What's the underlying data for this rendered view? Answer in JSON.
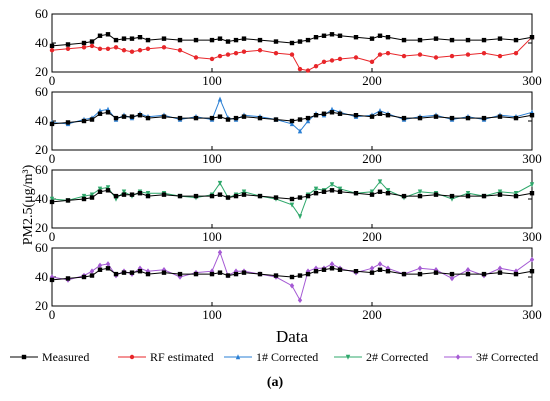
{
  "chart_data": {
    "type": "line",
    "caption": "(a)",
    "xlabel": "Data",
    "ylabel": "PM2.5(μg/m³)",
    "xlim": [
      0,
      300
    ],
    "ylim": [
      20,
      60
    ],
    "x_ticks": [
      "0",
      "100",
      "200",
      "300"
    ],
    "y_ticks": [
      "20",
      "40",
      "60"
    ],
    "colors": {
      "Measured": "#000000",
      "RF estimated": "#e8262a",
      "1# Corrected": "#2a7fd4",
      "2# Corrected": "#2fa86b",
      "3# Corrected": "#a55ad4"
    },
    "legend": [
      "Measured",
      "RF estimated",
      "1# Corrected",
      "2# Corrected",
      "3# Corrected"
    ],
    "legend_markers": [
      "square",
      "circle",
      "triangle-up",
      "triangle-down",
      "diamond"
    ],
    "legend_position": "bottom",
    "x": [
      0,
      10,
      20,
      25,
      30,
      35,
      40,
      45,
      50,
      55,
      60,
      70,
      80,
      90,
      100,
      105,
      110,
      115,
      120,
      130,
      140,
      150,
      155,
      160,
      165,
      170,
      175,
      180,
      190,
      200,
      205,
      210,
      220,
      230,
      240,
      250,
      260,
      270,
      280,
      290,
      300
    ],
    "panels": [
      {
        "series": [
          {
            "name": "Measured",
            "values": [
              38,
              39,
              40,
              41,
              45,
              46,
              42,
              43,
              43,
              44,
              42,
              43,
              42,
              42,
              42,
              43,
              41,
              42,
              43,
              42,
              41,
              40,
              41,
              42,
              44,
              45,
              46,
              45,
              44,
              43,
              45,
              44,
              42,
              42,
              43,
              42,
              42,
              42,
              43,
              42,
              44
            ]
          },
          {
            "name": "RF estimated",
            "values": [
              35,
              36,
              37,
              38,
              36,
              36,
              37,
              35,
              34,
              35,
              36,
              37,
              35,
              30,
              29,
              31,
              32,
              33,
              34,
              35,
              33,
              32,
              22,
              21,
              24,
              27,
              28,
              29,
              30,
              27,
              32,
              33,
              31,
              32,
              30,
              31,
              32,
              33,
              31,
              33,
              44
            ]
          }
        ]
      },
      {
        "series": [
          {
            "name": "Measured",
            "values": [
              38,
              39,
              40,
              41,
              45,
              46,
              42,
              43,
              43,
              44,
              42,
              43,
              42,
              42,
              42,
              43,
              41,
              42,
              43,
              42,
              41,
              40,
              41,
              42,
              44,
              45,
              46,
              45,
              44,
              43,
              45,
              44,
              42,
              42,
              43,
              42,
              42,
              42,
              43,
              42,
              44
            ]
          },
          {
            "name": "1# Corrected",
            "values": [
              39,
              38,
              41,
              42,
              47,
              48,
              41,
              44,
              42,
              45,
              43,
              44,
              41,
              43,
              41,
              55,
              42,
              41,
              44,
              43,
              41,
              38,
              33,
              40,
              45,
              44,
              48,
              46,
              43,
              44,
              47,
              45,
              41,
              43,
              44,
              41,
              43,
              41,
              44,
              43,
              46
            ]
          }
        ]
      },
      {
        "series": [
          {
            "name": "Measured",
            "values": [
              38,
              39,
              40,
              41,
              45,
              46,
              42,
              43,
              43,
              44,
              42,
              43,
              42,
              42,
              42,
              43,
              41,
              42,
              43,
              42,
              41,
              40,
              41,
              42,
              44,
              45,
              46,
              45,
              44,
              43,
              45,
              44,
              42,
              42,
              43,
              42,
              42,
              42,
              43,
              42,
              44
            ]
          },
          {
            "name": "2# Corrected",
            "values": [
              40,
              39,
              42,
              43,
              47,
              48,
              40,
              45,
              42,
              45,
              44,
              44,
              42,
              41,
              43,
              51,
              41,
              43,
              45,
              42,
              40,
              36,
              28,
              43,
              47,
              46,
              50,
              47,
              44,
              45,
              52,
              46,
              41,
              45,
              44,
              40,
              44,
              42,
              45,
              44,
              50
            ]
          }
        ]
      },
      {
        "series": [
          {
            "name": "Measured",
            "values": [
              38,
              39,
              40,
              41,
              45,
              46,
              42,
              43,
              43,
              44,
              42,
              43,
              42,
              42,
              42,
              43,
              41,
              42,
              43,
              42,
              41,
              40,
              41,
              42,
              44,
              45,
              46,
              45,
              44,
              43,
              45,
              44,
              42,
              42,
              43,
              42,
              42,
              42,
              43,
              42,
              44
            ]
          },
          {
            "name": "3# Corrected",
            "values": [
              40,
              38,
              41,
              44,
              48,
              49,
              41,
              44,
              42,
              46,
              44,
              45,
              40,
              43,
              44,
              57,
              41,
              44,
              44,
              42,
              40,
              34,
              24,
              44,
              46,
              46,
              49,
              46,
              43,
              46,
              49,
              46,
              42,
              46,
              45,
              39,
              45,
              41,
              46,
              44,
              52
            ]
          }
        ]
      }
    ]
  }
}
